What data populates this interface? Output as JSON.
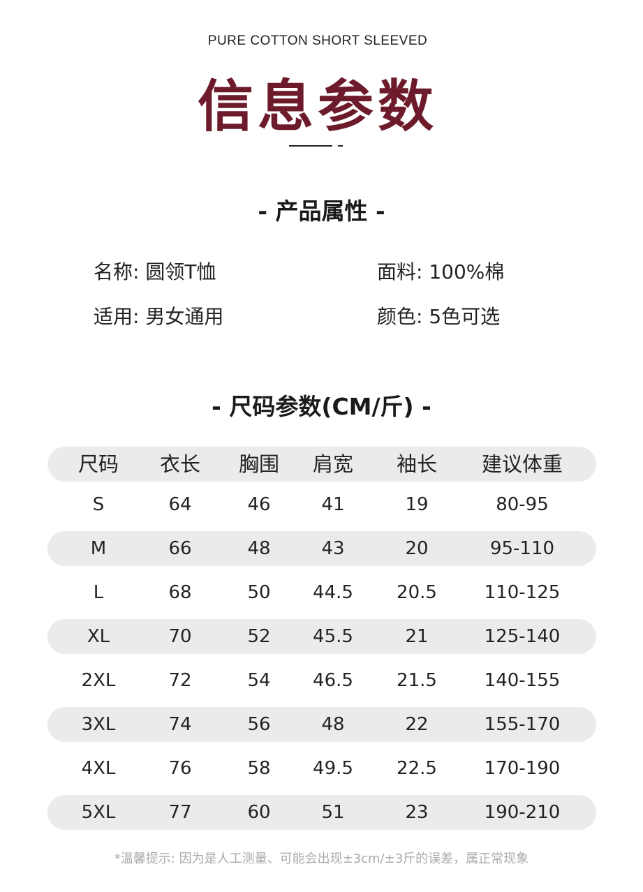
{
  "header": {
    "subtitle": "PURE COTTON SHORT SLEEVED",
    "title": "信息参数"
  },
  "attributes": {
    "heading": "- 产品属性 -",
    "items": [
      {
        "label": "名称:",
        "value": "圆领T恤"
      },
      {
        "label": "面料:",
        "value": "100%棉"
      },
      {
        "label": "适用:",
        "value": "男女通用"
      },
      {
        "label": "颜色:",
        "value": "5色可选"
      }
    ]
  },
  "size_table": {
    "heading": "- 尺码参数(CM/斤) -",
    "columns": [
      "尺码",
      "衣长",
      "胸围",
      "肩宽",
      "袖长",
      "建议体重"
    ],
    "rows": [
      [
        "S",
        "64",
        "46",
        "41",
        "19",
        "80-95"
      ],
      [
        "M",
        "66",
        "48",
        "43",
        "20",
        "95-110"
      ],
      [
        "L",
        "68",
        "50",
        "44.5",
        "20.5",
        "110-125"
      ],
      [
        "XL",
        "70",
        "52",
        "45.5",
        "21",
        "125-140"
      ],
      [
        "2XL",
        "72",
        "54",
        "46.5",
        "21.5",
        "140-155"
      ],
      [
        "3XL",
        "74",
        "56",
        "48",
        "22",
        "155-170"
      ],
      [
        "4XL",
        "76",
        "58",
        "49.5",
        "22.5",
        "170-190"
      ],
      [
        "5XL",
        "77",
        "60",
        "51",
        "23",
        "190-210"
      ]
    ]
  },
  "note": "*温馨提示: 因为是人工测量、可能会出现±3cm/±3斤的误差，属正常现象",
  "colors": {
    "title": "#6d1a2b",
    "row_shade": "#ebebeb"
  }
}
